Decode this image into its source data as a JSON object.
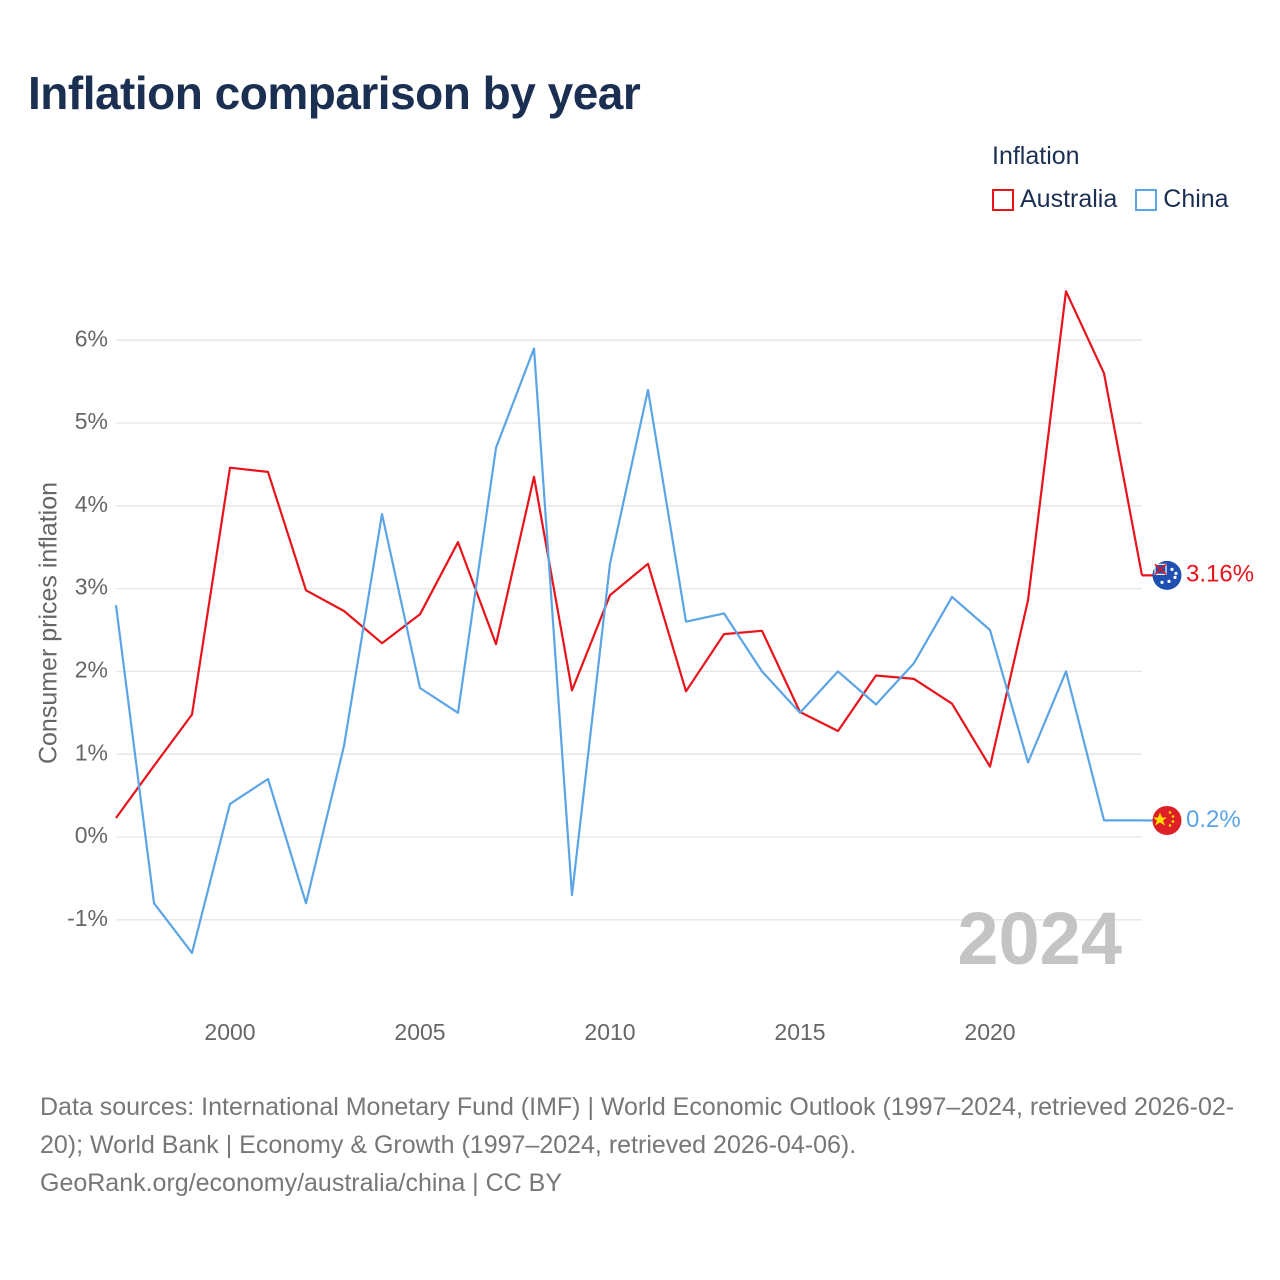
{
  "title": "Inflation comparison by year",
  "legend": {
    "title": "Inflation",
    "items": [
      {
        "label": "Australia",
        "color": "#e8131b"
      },
      {
        "label": "China",
        "color": "#5ba4e5"
      }
    ]
  },
  "year_label": "2024",
  "sources": {
    "line1": "Data sources: International Monetary Fund (IMF) | World Economic Outlook (1997–2024, retrieved 2026-02-20); World Bank | Economy & Growth (1997–2024, retrieved 2026-04-06).",
    "line2": "GeoRank.org/economy/australia/china | CC BY"
  },
  "chart_data": {
    "type": "line",
    "title": "Inflation comparison by year",
    "xlabel": "",
    "ylabel": "Consumer prices inflation",
    "xlim": [
      1997,
      2024
    ],
    "ylim": [
      -2,
      6.8
    ],
    "y_ticks": [
      -1,
      0,
      1,
      2,
      3,
      4,
      5,
      6
    ],
    "y_tick_labels": [
      "-1%",
      "0%",
      "1%",
      "2%",
      "3%",
      "4%",
      "5%",
      "6%"
    ],
    "x_ticks": [
      2000,
      2005,
      2010,
      2015,
      2020
    ],
    "x_tick_labels": [
      "2000",
      "2005",
      "2010",
      "2015",
      "2020"
    ],
    "grid": true,
    "x": [
      1997,
      1998,
      1999,
      2000,
      2001,
      2002,
      2003,
      2004,
      2005,
      2006,
      2007,
      2008,
      2009,
      2010,
      2011,
      2012,
      2013,
      2014,
      2015,
      2016,
      2017,
      2018,
      2019,
      2020,
      2021,
      2022,
      2023,
      2024
    ],
    "series": [
      {
        "name": "Australia",
        "color": "#e8131b",
        "end_label": "3.16%",
        "values": [
          0.23,
          0.86,
          1.48,
          4.46,
          4.41,
          2.98,
          2.73,
          2.34,
          2.69,
          3.56,
          2.33,
          4.35,
          1.77,
          2.92,
          3.3,
          1.76,
          2.45,
          2.49,
          1.51,
          1.28,
          1.95,
          1.91,
          1.61,
          0.85,
          2.86,
          6.59,
          5.6,
          3.16
        ]
      },
      {
        "name": "China",
        "color": "#5ba4e5",
        "end_label": "0.2%",
        "values": [
          2.8,
          -0.8,
          -1.4,
          0.4,
          0.7,
          -0.8,
          1.1,
          3.9,
          1.8,
          1.5,
          4.7,
          5.9,
          -0.7,
          3.3,
          5.4,
          2.6,
          2.7,
          2.0,
          1.5,
          2.0,
          1.6,
          2.1,
          2.9,
          2.5,
          0.9,
          2.0,
          0.2,
          0.2
        ]
      }
    ]
  }
}
